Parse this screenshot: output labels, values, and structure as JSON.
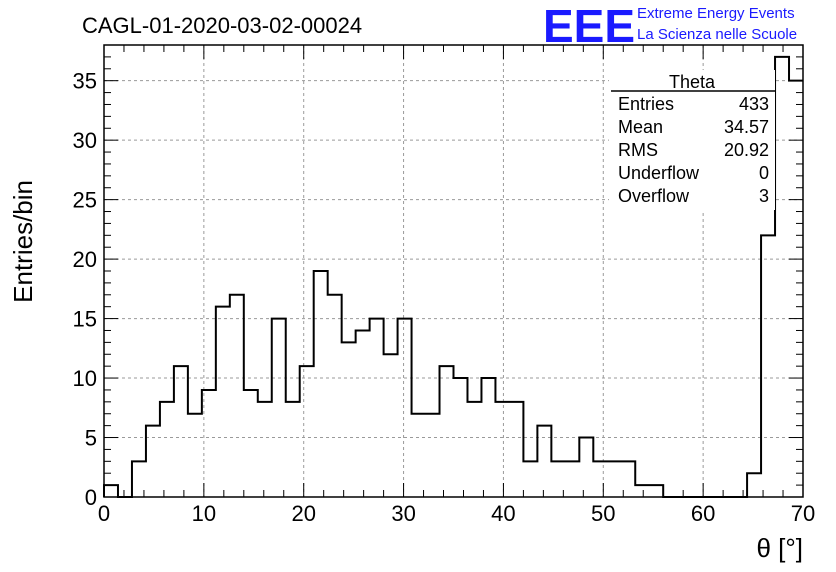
{
  "title": "CAGL-01-2020-03-02-00024",
  "logo": {
    "mark": "EEE",
    "line1": "Extreme Energy Events",
    "line2": "La Scienza nelle Scuole",
    "color": "#1a1aff"
  },
  "stats_box": {
    "name": "Theta",
    "rows": [
      {
        "label": "Entries",
        "value": "433"
      },
      {
        "label": "Mean",
        "value": "34.57"
      },
      {
        "label": "RMS",
        "value": "20.92"
      },
      {
        "label": "Underflow",
        "value": "0"
      },
      {
        "label": "Overflow",
        "value": "3"
      }
    ]
  },
  "chart_data": {
    "type": "histogram",
    "xlabel": "θ [°]",
    "ylabel": "Entries/bin",
    "xlim": [
      0,
      70
    ],
    "ylim": [
      0,
      38
    ],
    "xticks": [
      0,
      10,
      20,
      30,
      40,
      50,
      60,
      70
    ],
    "yticks": [
      0,
      5,
      10,
      15,
      20,
      25,
      30,
      35
    ],
    "grid": true,
    "bin_width": 1.4,
    "counts": [
      1,
      0,
      3,
      6,
      8,
      11,
      7,
      9,
      16,
      17,
      9,
      8,
      15,
      8,
      11,
      19,
      17,
      13,
      14,
      15,
      12,
      15,
      7,
      7,
      11,
      10,
      8,
      10,
      8,
      8,
      3,
      6,
      3,
      3,
      5,
      3,
      3,
      3,
      1,
      1,
      0,
      0,
      0,
      0,
      0,
      0,
      2,
      22,
      37,
      35
    ]
  }
}
